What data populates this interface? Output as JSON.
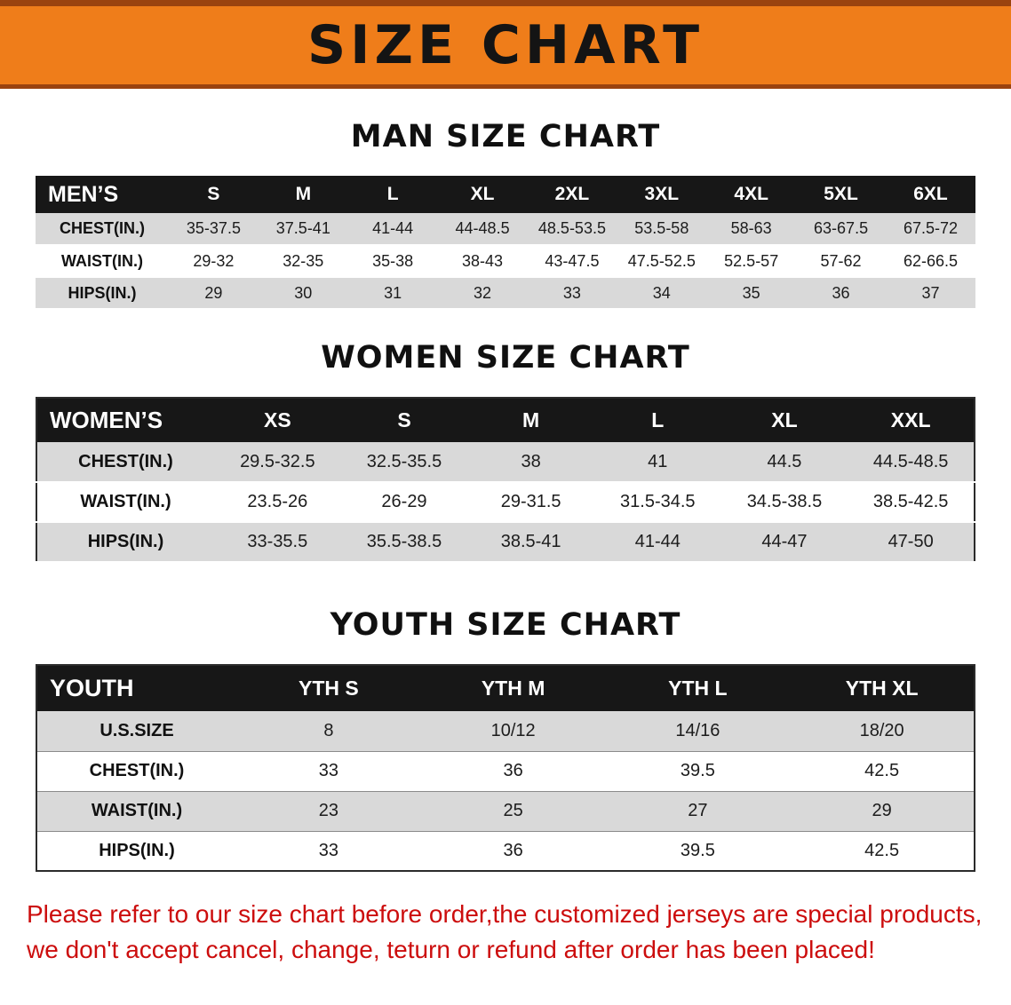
{
  "banner": {
    "title": "SIZE CHART",
    "bg_color": "#EF7D1A",
    "edge_color": "#9A430F",
    "text_color": "#141414"
  },
  "sections": [
    {
      "id": "men",
      "heading": "MAN SIZE CHART",
      "table": {
        "header": [
          "MEN’S",
          "S",
          "M",
          "L",
          "XL",
          "2XL",
          "3XL",
          "4XL",
          "5XL",
          "6XL"
        ],
        "rows": [
          {
            "label": "CHEST(IN.)",
            "values": [
              "35-37.5",
              "37.5-41",
              "41-44",
              "44-48.5",
              "48.5-53.5",
              "53.5-58",
              "58-63",
              "63-67.5",
              "67.5-72"
            ]
          },
          {
            "label": "WAIST(IN.)",
            "values": [
              "29-32",
              "32-35",
              "35-38",
              "38-43",
              "43-47.5",
              "47.5-52.5",
              "52.5-57",
              "57-62",
              "62-66.5"
            ]
          },
          {
            "label": "HIPS(IN.)",
            "values": [
              "29",
              "30",
              "31",
              "32",
              "33",
              "34",
              "35",
              "36",
              "37"
            ]
          }
        ]
      }
    },
    {
      "id": "women",
      "heading": "WOMEN SIZE CHART",
      "table": {
        "header": [
          "WOMEN’S",
          "XS",
          "S",
          "M",
          "L",
          "XL",
          "XXL"
        ],
        "rows": [
          {
            "label": "CHEST(IN.)",
            "values": [
              "29.5-32.5",
              "32.5-35.5",
              "38",
              "41",
              "44.5",
              "44.5-48.5"
            ]
          },
          {
            "label": "WAIST(IN.)",
            "values": [
              "23.5-26",
              "26-29",
              "29-31.5",
              "31.5-34.5",
              "34.5-38.5",
              "38.5-42.5"
            ]
          },
          {
            "label": "HIPS(IN.)",
            "values": [
              "33-35.5",
              "35.5-38.5",
              "38.5-41",
              "41-44",
              "44-47",
              "47-50"
            ]
          }
        ]
      }
    },
    {
      "id": "youth",
      "heading": "YOUTH SIZE CHART",
      "table": {
        "header": [
          "YOUTH",
          "YTH S",
          "YTH M",
          "YTH L",
          "YTH XL"
        ],
        "rows": [
          {
            "label": "U.S.SIZE",
            "values": [
              "8",
              "10/12",
              "14/16",
              "18/20"
            ]
          },
          {
            "label": "CHEST(IN.)",
            "values": [
              "33",
              "36",
              "39.5",
              "42.5"
            ]
          },
          {
            "label": "WAIST(IN.)",
            "values": [
              "23",
              "25",
              "27",
              "29"
            ]
          },
          {
            "label": "HIPS(IN.)",
            "values": [
              "33",
              "36",
              "39.5",
              "42.5"
            ]
          }
        ]
      }
    }
  ],
  "disclaimer": {
    "line1": "Please refer to our size chart before order,the customized jerseys are special products,",
    "line2": "we don't accept cancel, change, teturn or refund after order has been placed!",
    "color": "#CC0D0D"
  }
}
